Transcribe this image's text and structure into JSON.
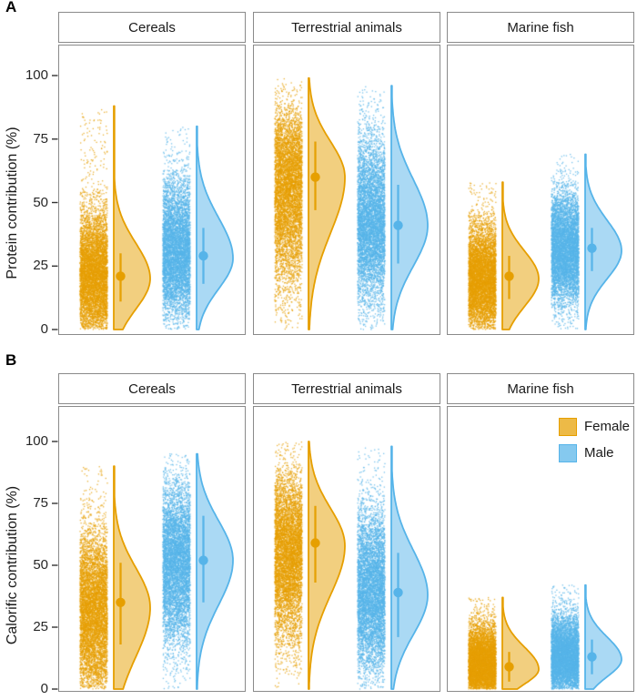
{
  "figure": {
    "panel_labels": [
      "A",
      "B"
    ]
  },
  "chart_data": {
    "type": "raincloud",
    "description": "Half-violin (cloud) + jittered points (rain) + mean dot with credible-interval bar, faceted by food source, split by sex",
    "facets": [
      "Cereals",
      "Terrestrial animals",
      "Marine fish"
    ],
    "sexes": [
      "Female",
      "Male"
    ],
    "colors": {
      "Female": "#E69F00",
      "Male": "#56B4E9"
    },
    "legend": {
      "position": "top-right inside panel B, Marine fish facet",
      "entries": [
        {
          "label": "Female",
          "color": "#E69F00"
        },
        {
          "label": "Male",
          "color": "#56B4E9"
        }
      ]
    },
    "panels": [
      {
        "panel_label": "A",
        "ylabel": "Protein contribution (%)",
        "yticks": [
          0,
          25,
          50,
          75,
          100
        ],
        "ylim": [
          0,
          100
        ],
        "grid": false,
        "stats": [
          {
            "facet": "Cereals",
            "sex": "Female",
            "mean": 21,
            "ci_low": 11,
            "ci_high": 30,
            "min": 0,
            "max": 88,
            "mode": 20,
            "sd_below": 12,
            "sd_above": 14
          },
          {
            "facet": "Cereals",
            "sex": "Male",
            "mean": 29,
            "ci_low": 18,
            "ci_high": 40,
            "min": 0,
            "max": 80,
            "mode": 28,
            "sd_below": 12,
            "sd_above": 16
          },
          {
            "facet": "Terrestrial animals",
            "sex": "Female",
            "mean": 60,
            "ci_low": 47,
            "ci_high": 74,
            "min": 0,
            "max": 99,
            "mode": 60,
            "sd_below": 22,
            "sd_above": 14
          },
          {
            "facet": "Terrestrial animals",
            "sex": "Male",
            "mean": 41,
            "ci_low": 26,
            "ci_high": 57,
            "min": 0,
            "max": 96,
            "mode": 41,
            "sd_below": 16,
            "sd_above": 18
          },
          {
            "facet": "Marine fish",
            "sex": "Female",
            "mean": 21,
            "ci_low": 12,
            "ci_high": 29,
            "min": 0,
            "max": 58,
            "mode": 20,
            "sd_below": 11,
            "sd_above": 11
          },
          {
            "facet": "Marine fish",
            "sex": "Male",
            "mean": 32,
            "ci_low": 23,
            "ci_high": 40,
            "min": 0,
            "max": 69,
            "mode": 31,
            "sd_below": 11,
            "sd_above": 12
          }
        ]
      },
      {
        "panel_label": "B",
        "ylabel": "Calorific contribution (%)",
        "yticks": [
          0,
          25,
          50,
          75,
          100
        ],
        "ylim": [
          0,
          100
        ],
        "grid": false,
        "stats": [
          {
            "facet": "Cereals",
            "sex": "Female",
            "mean": 35,
            "ci_low": 18,
            "ci_high": 51,
            "min": 0,
            "max": 90,
            "mode": 33,
            "sd_below": 20,
            "sd_above": 16
          },
          {
            "facet": "Cereals",
            "sex": "Male",
            "mean": 52,
            "ci_low": 35,
            "ci_high": 70,
            "min": 0,
            "max": 95,
            "mode": 52,
            "sd_below": 18,
            "sd_above": 16
          },
          {
            "facet": "Terrestrial animals",
            "sex": "Female",
            "mean": 59,
            "ci_low": 43,
            "ci_high": 74,
            "min": 0,
            "max": 100,
            "mode": 58,
            "sd_below": 20,
            "sd_above": 15
          },
          {
            "facet": "Terrestrial animals",
            "sex": "Male",
            "mean": 39,
            "ci_low": 21,
            "ci_high": 55,
            "min": 0,
            "max": 98,
            "mode": 38,
            "sd_below": 16,
            "sd_above": 18
          },
          {
            "facet": "Marine fish",
            "sex": "Female",
            "mean": 9,
            "ci_low": 3,
            "ci_high": 15,
            "min": 0,
            "max": 37,
            "mode": 8,
            "sd_below": 6,
            "sd_above": 9
          },
          {
            "facet": "Marine fish",
            "sex": "Male",
            "mean": 13,
            "ci_low": 6,
            "ci_high": 20,
            "min": 0,
            "max": 42,
            "mode": 12,
            "sd_below": 7,
            "sd_above": 9
          }
        ]
      }
    ]
  }
}
